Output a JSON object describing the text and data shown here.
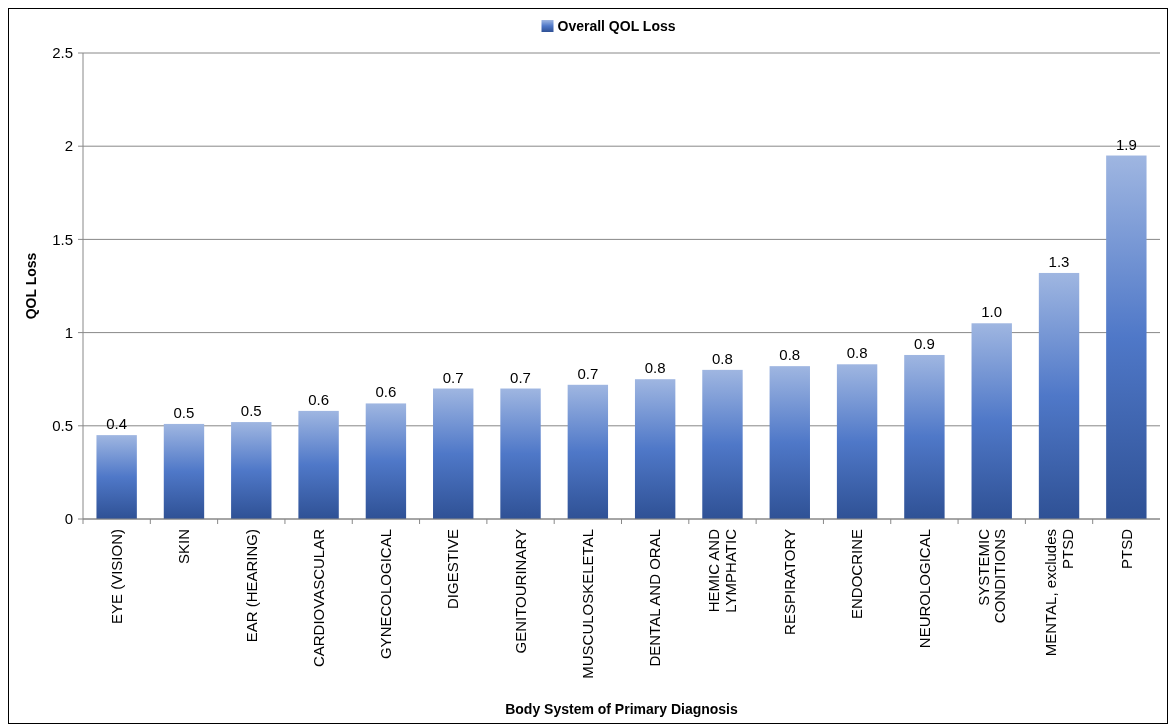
{
  "chart_data": {
    "type": "bar",
    "xlabel": "Body System of Primary Diagnosis",
    "ylabel": "QOL Loss",
    "categories": [
      "EYE (VISION)",
      "SKIN",
      "EAR (HEARING)",
      "CARDIOVASCULAR",
      "GYNECOLOGICAL",
      "DIGESTIVE",
      "GENITOURINARY",
      "MUSCULOSKELETAL",
      "DENTAL AND ORAL",
      "HEMIC AND LYMPHATIC",
      "RESPIRATORY",
      "ENDOCRINE",
      "NEUROLOGICAL",
      "SYSTEMIC CONDITIONS",
      "MENTAL, excludes PTSD",
      "PTSD"
    ],
    "series": [
      {
        "name": "Overall QOL Loss",
        "color": "#4f78c8",
        "values": [
          0.45,
          0.51,
          0.52,
          0.58,
          0.62,
          0.7,
          0.7,
          0.72,
          0.75,
          0.8,
          0.82,
          0.83,
          0.88,
          1.05,
          1.32,
          1.95
        ],
        "value_labels": [
          "0.4",
          "0.5",
          "0.5",
          "0.6",
          "0.6",
          "0.7",
          "0.7",
          "0.7",
          "0.8",
          "0.8",
          "0.8",
          "0.8",
          "0.9",
          "1.0",
          "1.3",
          "1.9"
        ]
      }
    ],
    "ylim": [
      0,
      2.5
    ],
    "yticks": [
      0,
      {
        "value": 0.5,
        "label": "0.5"
      },
      1,
      {
        "value": 1.5,
        "label": "1.5"
      },
      2,
      {
        "value": 2.5,
        "label": "2.5"
      }
    ],
    "grid": "y",
    "legend": "top"
  }
}
